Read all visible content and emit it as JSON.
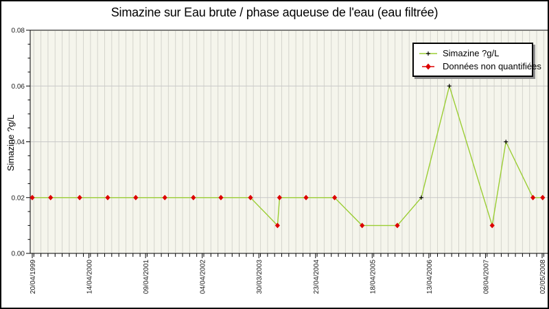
{
  "title": "Simazine sur Eau brute / phase aqueuse de l'eau (eau filtrée)",
  "chart_data": {
    "type": "line",
    "title": "Simazine sur Eau brute / phase aqueuse de l'eau (eau filtrée)",
    "xlabel": "",
    "ylabel": "Simazine ?g/L",
    "ylim": [
      0,
      0.08
    ],
    "y_tick_labels": [
      "0.00",
      "0.02",
      "0.04",
      "0.06",
      "0.08"
    ],
    "y_minor_tick_step": 0.005,
    "x_tick_labels": [
      "20/04/1999",
      "14/04/2000",
      "09/04/2001",
      "04/04/2002",
      "30/03/2003",
      "23/04/2004",
      "18/04/2005",
      "13/04/2006",
      "08/04/2007",
      "02/05/2008"
    ],
    "grid": {
      "vertical_minor_stripes": true,
      "horizontal_major_lines": true
    },
    "legend": {
      "position": "top-right",
      "items": [
        {
          "label": "Simazine ?g/L",
          "marker": "black-plus-on-green-line",
          "color": "#9acd32"
        },
        {
          "label": "Données non quantifiées",
          "marker": "red-diamond",
          "color": "#dd0000"
        }
      ]
    },
    "series": [
      {
        "name": "Simazine ?g/L",
        "unit": "?g/L",
        "points": [
          {
            "x_frac": 0.0,
            "y": 0.02,
            "quantified": false
          },
          {
            "x_frac": 0.036,
            "y": 0.02,
            "quantified": false
          },
          {
            "x_frac": 0.093,
            "y": 0.02,
            "quantified": false
          },
          {
            "x_frac": 0.148,
            "y": 0.02,
            "quantified": false
          },
          {
            "x_frac": 0.203,
            "y": 0.02,
            "quantified": false
          },
          {
            "x_frac": 0.26,
            "y": 0.02,
            "quantified": false
          },
          {
            "x_frac": 0.316,
            "y": 0.02,
            "quantified": false
          },
          {
            "x_frac": 0.37,
            "y": 0.02,
            "quantified": false
          },
          {
            "x_frac": 0.428,
            "y": 0.02,
            "quantified": false
          },
          {
            "x_frac": 0.481,
            "y": 0.01,
            "quantified": false
          },
          {
            "x_frac": 0.485,
            "y": 0.02,
            "quantified": false
          },
          {
            "x_frac": 0.537,
            "y": 0.02,
            "quantified": false
          },
          {
            "x_frac": 0.593,
            "y": 0.02,
            "quantified": false
          },
          {
            "x_frac": 0.647,
            "y": 0.01,
            "quantified": false
          },
          {
            "x_frac": 0.716,
            "y": 0.01,
            "quantified": false
          },
          {
            "x_frac": 0.763,
            "y": 0.02,
            "quantified": true
          },
          {
            "x_frac": 0.818,
            "y": 0.06,
            "quantified": true
          },
          {
            "x_frac": 0.902,
            "y": 0.01,
            "quantified": false
          },
          {
            "x_frac": 0.929,
            "y": 0.04,
            "quantified": true
          },
          {
            "x_frac": 0.982,
            "y": 0.02,
            "quantified": false
          },
          {
            "x_frac": 1.001,
            "y": 0.02,
            "quantified": false
          }
        ]
      }
    ],
    "colors": {
      "line": "#9acd32",
      "quantified_marker": "#000000",
      "non_quantified_marker": "#dd0000",
      "plot_background": "#f5f5ec",
      "minor_grid": "#d4d4cc",
      "major_grid": "#c8c8c8",
      "frame": "#000000",
      "tick_text": "#1a1a1a"
    }
  }
}
